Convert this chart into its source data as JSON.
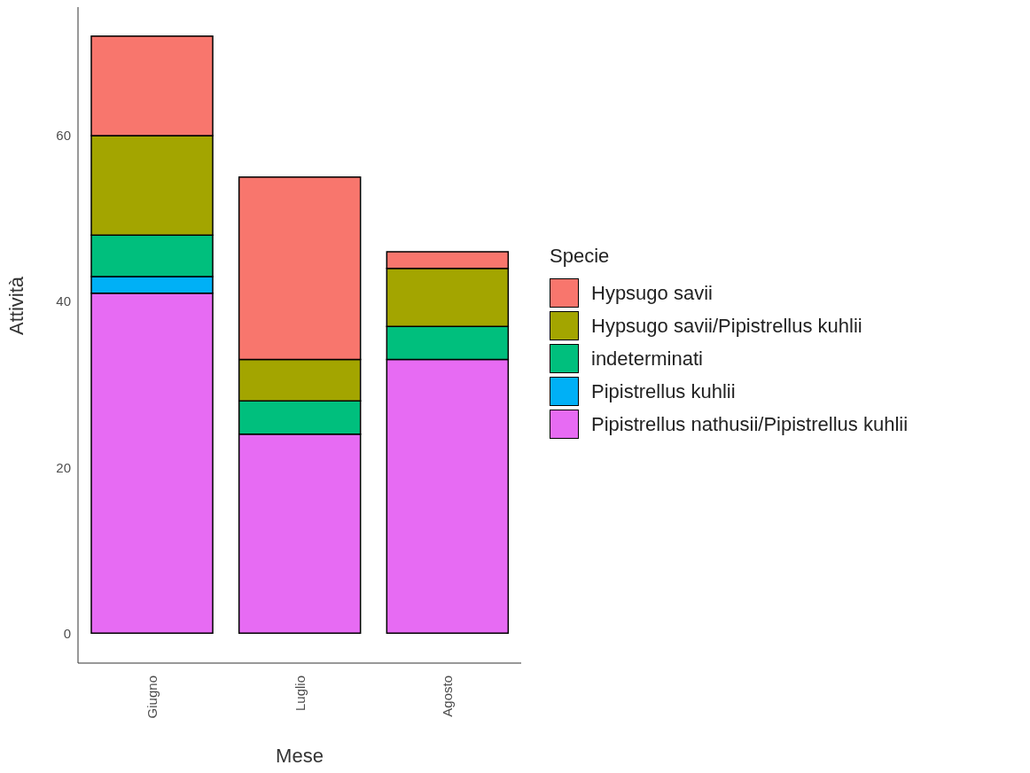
{
  "chart_data": {
    "type": "bar",
    "stacked": true,
    "xlabel": "Mese",
    "ylabel": "Attività",
    "legend_title": "Specie",
    "legend": "right",
    "grid": false,
    "categories": [
      "Giugno",
      "Luglio",
      "Agosto"
    ],
    "ylim": [
      -3.6,
      75.5
    ],
    "yticks": [
      0,
      20,
      40,
      60
    ],
    "series": [
      {
        "name": "Pipistrellus nathusii/Pipistrellus kuhlii",
        "color": "#e76bf3",
        "values": [
          41,
          24,
          33
        ]
      },
      {
        "name": "Pipistrellus kuhlii",
        "color": "#00b0f6",
        "values": [
          2,
          0,
          0
        ]
      },
      {
        "name": "indeterminati",
        "color": "#00bf7d",
        "values": [
          5,
          4,
          4
        ]
      },
      {
        "name": "Hypsugo savii/Pipistrellus kuhlii",
        "color": "#a3a500",
        "values": [
          12,
          5,
          7
        ]
      },
      {
        "name": "Hypsugo savii",
        "color": "#f8766d",
        "values": [
          12,
          22,
          2
        ]
      }
    ]
  }
}
